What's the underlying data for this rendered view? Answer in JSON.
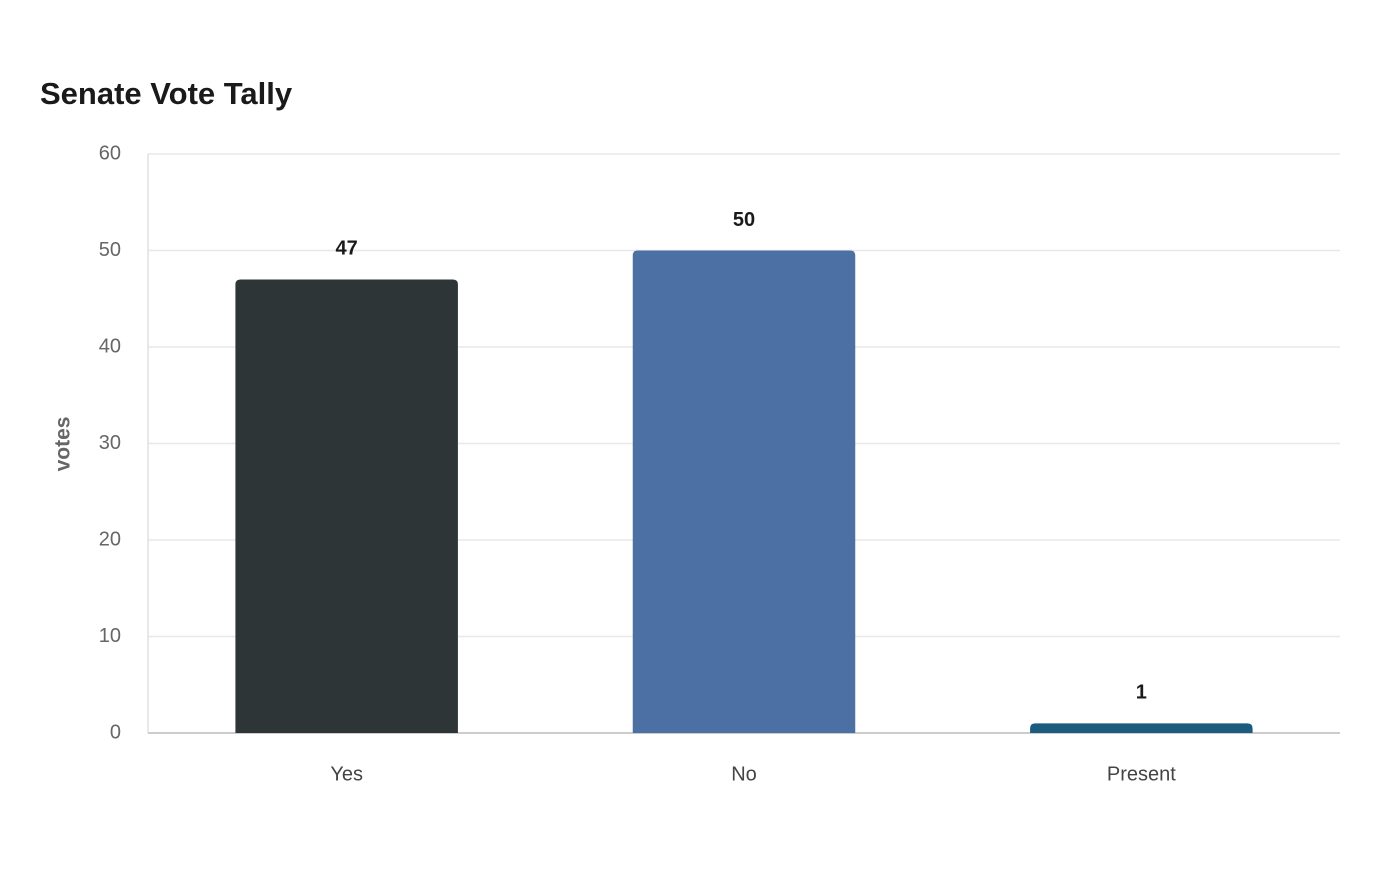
{
  "chart_data": {
    "type": "bar",
    "title": "Senate Vote Tally",
    "y_label": "votes",
    "categories": [
      "Yes",
      "No",
      "Present"
    ],
    "values": [
      47,
      50,
      1
    ],
    "colors": [
      "#2e3537",
      "#4c70a4",
      "#1b5b80"
    ],
    "ylim": [
      0,
      60
    ],
    "yticks": [
      0,
      10,
      20,
      30,
      40,
      50,
      60
    ],
    "grid": true
  }
}
